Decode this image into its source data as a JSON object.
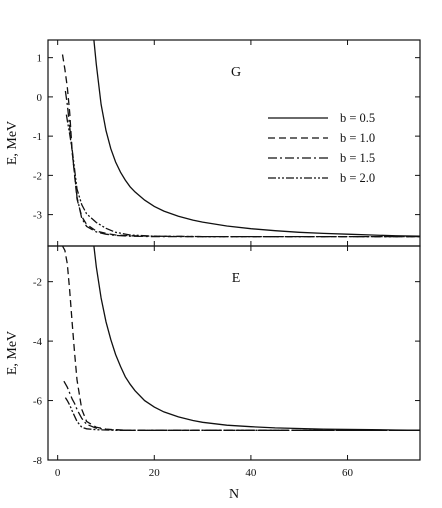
{
  "chart_data": [
    {
      "type": "line",
      "panel_label": "G",
      "ylabel": "E, MeV",
      "xlabel": "",
      "xlim": [
        -2,
        75
      ],
      "ylim": [
        -3.8,
        1.45
      ],
      "xticks": [
        0,
        20,
        40,
        60
      ],
      "xtick_labels": [
        "",
        "",
        "",
        ""
      ],
      "yticks": [
        1,
        0,
        -1,
        -2,
        -3
      ],
      "ytick_labels": [
        "1",
        "0",
        "-1",
        "-2",
        "-3"
      ],
      "legend_position": "right",
      "series": [
        {
          "name": "b = 0.5",
          "x": [
            7.5,
            8,
            9,
            10,
            11,
            12,
            13,
            14,
            15,
            16,
            18,
            20,
            22,
            25,
            28,
            30,
            35,
            40,
            45,
            50,
            55,
            60,
            65,
            70,
            75
          ],
          "y": [
            1.45,
            0.83,
            -0.19,
            -0.86,
            -1.32,
            -1.66,
            -1.92,
            -2.12,
            -2.29,
            -2.42,
            -2.63,
            -2.79,
            -2.91,
            -3.04,
            -3.14,
            -3.19,
            -3.29,
            -3.36,
            -3.41,
            -3.45,
            -3.48,
            -3.5,
            -3.52,
            -3.54,
            -3.55
          ]
        },
        {
          "name": "b = 1.0",
          "x": [
            1,
            1.5,
            2,
            2.5,
            3,
            4,
            5,
            6,
            8,
            10,
            12,
            15,
            20,
            30,
            40,
            60,
            75
          ],
          "y": [
            1.08,
            0.7,
            0.25,
            -0.4,
            -1.4,
            -2.6,
            -3.05,
            -3.25,
            -3.42,
            -3.48,
            -3.52,
            -3.54,
            -3.55,
            -3.56,
            -3.56,
            -3.56,
            -3.56
          ]
        },
        {
          "name": "b = 1.5",
          "x": [
            1.6,
            2,
            2.5,
            3,
            4,
            5,
            6,
            8,
            10,
            12,
            15,
            20,
            30,
            40,
            60,
            75
          ],
          "y": [
            0.15,
            -0.2,
            -0.75,
            -1.4,
            -2.55,
            -3.1,
            -3.3,
            -3.44,
            -3.5,
            -3.53,
            -3.55,
            -3.56,
            -3.56,
            -3.56,
            -3.56,
            -3.56
          ]
        },
        {
          "name": "b = 2.0",
          "x": [
            1.8,
            2,
            2.5,
            3,
            3.5,
            4,
            5,
            6,
            8,
            10,
            12,
            15,
            20,
            30,
            40,
            60,
            75
          ],
          "y": [
            -0.45,
            -0.6,
            -0.95,
            -1.35,
            -1.85,
            -2.35,
            -2.75,
            -2.98,
            -3.2,
            -3.35,
            -3.45,
            -3.52,
            -3.55,
            -3.56,
            -3.56,
            -3.56,
            -3.56
          ]
        }
      ]
    },
    {
      "type": "line",
      "panel_label": "E",
      "ylabel": "E, MeV",
      "xlabel": "N",
      "xlim": [
        -2,
        75
      ],
      "ylim": [
        -8,
        -0.8
      ],
      "xticks": [
        0,
        20,
        40,
        60
      ],
      "xtick_labels": [
        "0",
        "20",
        "40",
        "60"
      ],
      "yticks": [
        -2,
        -4,
        -6,
        -8
      ],
      "ytick_labels": [
        "-2",
        "-4",
        "-6",
        "-8"
      ],
      "series": [
        {
          "name": "b = 0.5",
          "x": [
            7.5,
            8,
            9,
            10,
            11,
            12,
            13,
            14,
            15,
            16,
            18,
            20,
            22,
            25,
            28,
            30,
            35,
            40,
            45,
            50,
            55,
            60,
            65,
            70,
            75
          ],
          "y": [
            -0.8,
            -1.5,
            -2.55,
            -3.35,
            -3.95,
            -4.45,
            -4.85,
            -5.2,
            -5.45,
            -5.67,
            -6.0,
            -6.22,
            -6.38,
            -6.55,
            -6.67,
            -6.73,
            -6.83,
            -6.88,
            -6.92,
            -6.94,
            -6.96,
            -6.97,
            -6.98,
            -6.99,
            -7.0
          ]
        },
        {
          "name": "b = 1.0",
          "x": [
            1,
            1.5,
            2,
            2.5,
            3,
            3.5,
            4,
            5,
            6,
            8,
            10,
            12,
            15,
            20,
            30,
            40,
            60,
            75
          ],
          "y": [
            -0.8,
            -0.95,
            -1.4,
            -2.3,
            -3.4,
            -4.4,
            -5.3,
            -6.3,
            -6.7,
            -6.9,
            -6.96,
            -6.98,
            -7.0,
            -7.0,
            -7.0,
            -7.0,
            -7.0,
            -7.0
          ]
        },
        {
          "name": "b = 1.5",
          "x": [
            1.3,
            2,
            2.5,
            3,
            3.5,
            4,
            5,
            6,
            8,
            10,
            12,
            15,
            20,
            30,
            40,
            60,
            75
          ],
          "y": [
            -5.35,
            -5.55,
            -5.75,
            -5.95,
            -6.1,
            -6.3,
            -6.6,
            -6.8,
            -6.93,
            -6.97,
            -6.99,
            -7.0,
            -7.0,
            -7.0,
            -7.0,
            -7.0,
            -7.0
          ]
        },
        {
          "name": "b = 2.0",
          "x": [
            1.6,
            2,
            2.5,
            3,
            4,
            5,
            6,
            8,
            10,
            12,
            15,
            20,
            30,
            40,
            60,
            75
          ],
          "y": [
            -5.9,
            -6.0,
            -6.15,
            -6.35,
            -6.7,
            -6.9,
            -6.95,
            -6.98,
            -6.99,
            -7.0,
            -7.0,
            -7.0,
            -7.0,
            -7.0,
            -7.0,
            -7.0
          ]
        }
      ]
    }
  ]
}
